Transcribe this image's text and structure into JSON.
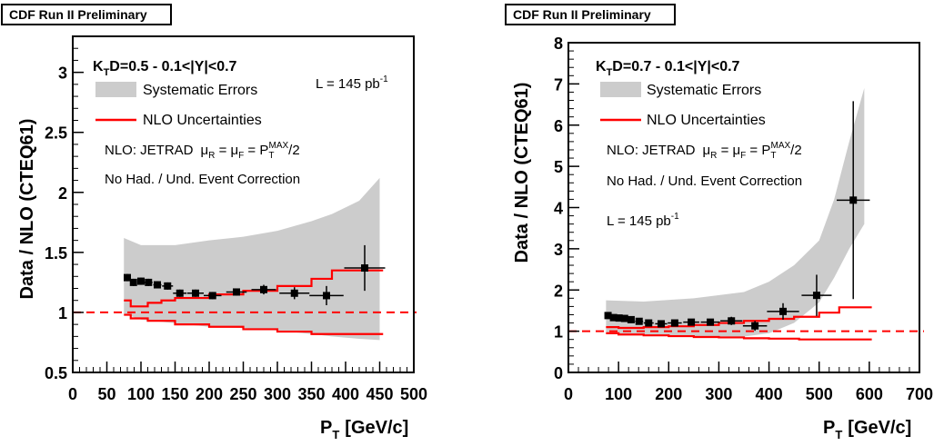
{
  "colors": {
    "band": "#cccccc",
    "nlo": "#ff0000",
    "data": "#000000",
    "frame": "#000000"
  },
  "panels": [
    {
      "banner": "CDF Run II Preliminary",
      "kt_label": "D=0.5 - 0.1<|Y|<0.7",
      "lumi": "L = 145 pb",
      "lumi_exp": "-1",
      "legend_syst": "Systematic Errors",
      "legend_nlo": "NLO Uncertainties",
      "nlo_text": "NLO: JETRAD",
      "mu_text": "/2",
      "corr_text": "No Had. / Und. Event Correction",
      "ylabel": "Data / NLO (CTEQ61)",
      "xlabel": "[GeV/c]",
      "chart_data": {
        "type": "scatter",
        "xlim": [
          0,
          500
        ],
        "ylim": [
          0.5,
          3.3
        ],
        "xticks": [
          0,
          50,
          100,
          150,
          200,
          250,
          300,
          350,
          400,
          450,
          500
        ],
        "yticks": [
          0.5,
          1,
          1.5,
          2,
          2.5,
          3
        ],
        "points": [
          {
            "x": 80,
            "xerr": 4,
            "y": 1.29,
            "yerr": 0.03
          },
          {
            "x": 89,
            "xerr": 5,
            "y": 1.25,
            "yerr": 0.03
          },
          {
            "x": 100,
            "xerr": 5,
            "y": 1.26,
            "yerr": 0.03
          },
          {
            "x": 111,
            "xerr": 6,
            "y": 1.25,
            "yerr": 0.03
          },
          {
            "x": 124,
            "xerr": 6,
            "y": 1.23,
            "yerr": 0.03
          },
          {
            "x": 139,
            "xerr": 8,
            "y": 1.22,
            "yerr": 0.03
          },
          {
            "x": 157,
            "xerr": 10,
            "y": 1.16,
            "yerr": 0.03
          },
          {
            "x": 180,
            "xerr": 12,
            "y": 1.16,
            "yerr": 0.03
          },
          {
            "x": 205,
            "xerr": 13,
            "y": 1.14,
            "yerr": 0.03
          },
          {
            "x": 240,
            "xerr": 15,
            "y": 1.17,
            "yerr": 0.03
          },
          {
            "x": 280,
            "xerr": 18,
            "y": 1.19,
            "yerr": 0.04
          },
          {
            "x": 325,
            "xerr": 22,
            "y": 1.16,
            "yerr": 0.05
          },
          {
            "x": 372,
            "xerr": 25,
            "y": 1.14,
            "yerr": 0.08
          },
          {
            "x": 428,
            "xerr": 30,
            "y": 1.37,
            "yerr": 0.19
          }
        ],
        "band_upper": [
          [
            75,
            1.62
          ],
          [
            100,
            1.56
          ],
          [
            150,
            1.56
          ],
          [
            200,
            1.6
          ],
          [
            250,
            1.63
          ],
          [
            300,
            1.68
          ],
          [
            350,
            1.76
          ],
          [
            380,
            1.82
          ],
          [
            420,
            1.93
          ],
          [
            450,
            2.12
          ]
        ],
        "band_lower": [
          [
            75,
            0.99
          ],
          [
            100,
            0.94
          ],
          [
            150,
            0.91
          ],
          [
            200,
            0.88
          ],
          [
            250,
            0.87
          ],
          [
            300,
            0.85
          ],
          [
            350,
            0.82
          ],
          [
            380,
            0.8
          ],
          [
            420,
            0.78
          ],
          [
            450,
            0.77
          ]
        ],
        "nlo_upper": [
          [
            75,
            1.1
          ],
          [
            85,
            1.05
          ],
          [
            110,
            1.08
          ],
          [
            130,
            1.1
          ],
          [
            150,
            1.12
          ],
          [
            200,
            1.15
          ],
          [
            250,
            1.18
          ],
          [
            300,
            1.22
          ],
          [
            350,
            1.28
          ],
          [
            380,
            1.35
          ],
          [
            455,
            1.35
          ]
        ],
        "nlo_lower": [
          [
            75,
            0.98
          ],
          [
            85,
            0.95
          ],
          [
            110,
            0.93
          ],
          [
            150,
            0.9
          ],
          [
            200,
            0.88
          ],
          [
            250,
            0.86
          ],
          [
            300,
            0.84
          ],
          [
            350,
            0.82
          ],
          [
            455,
            0.82
          ]
        ],
        "ref_line": 1
      }
    },
    {
      "banner": "CDF Run II Preliminary",
      "kt_label": "D=0.7 - 0.1<|Y|<0.7",
      "lumi": "L = 145 pb",
      "lumi_exp": "-1",
      "legend_syst": "Systematic Errors",
      "legend_nlo": "NLO Uncertainties",
      "nlo_text": "NLO: JETRAD",
      "mu_text": "/2",
      "corr_text": "No Had. / Und. Event Correction",
      "ylabel": "Data / NLO (CTEQ61)",
      "xlabel": "[GeV/c]",
      "chart_data": {
        "type": "scatter",
        "xlim": [
          0,
          700
        ],
        "ylim": [
          0,
          8
        ],
        "xticks": [
          0,
          100,
          200,
          300,
          400,
          500,
          600,
          700
        ],
        "yticks": [
          0,
          1,
          2,
          3,
          4,
          5,
          6,
          7,
          8
        ],
        "points": [
          {
            "x": 79,
            "xerr": 4,
            "y": 1.38,
            "yerr": 0.05
          },
          {
            "x": 90,
            "xerr": 5,
            "y": 1.33,
            "yerr": 0.05
          },
          {
            "x": 101,
            "xerr": 5,
            "y": 1.32,
            "yerr": 0.05
          },
          {
            "x": 112,
            "xerr": 6,
            "y": 1.31,
            "yerr": 0.05
          },
          {
            "x": 125,
            "xerr": 7,
            "y": 1.28,
            "yerr": 0.05
          },
          {
            "x": 141,
            "xerr": 8,
            "y": 1.24,
            "yerr": 0.05
          },
          {
            "x": 160,
            "xerr": 10,
            "y": 1.2,
            "yerr": 0.05
          },
          {
            "x": 185,
            "xerr": 12,
            "y": 1.18,
            "yerr": 0.05
          },
          {
            "x": 212,
            "xerr": 14,
            "y": 1.2,
            "yerr": 0.06
          },
          {
            "x": 245,
            "xerr": 16,
            "y": 1.22,
            "yerr": 0.07
          },
          {
            "x": 283,
            "xerr": 19,
            "y": 1.22,
            "yerr": 0.08
          },
          {
            "x": 325,
            "xerr": 22,
            "y": 1.25,
            "yerr": 0.1
          },
          {
            "x": 372,
            "xerr": 24,
            "y": 1.13,
            "yerr": 0.12
          },
          {
            "x": 428,
            "xerr": 32,
            "y": 1.48,
            "yerr": 0.2
          },
          {
            "x": 495,
            "xerr": 30,
            "y": 1.87,
            "yerr": 0.5
          },
          {
            "x": 568,
            "xerr": 33,
            "y": 4.18,
            "yerr": 2.4
          }
        ],
        "band_upper": [
          [
            75,
            1.75
          ],
          [
            150,
            1.72
          ],
          [
            250,
            1.8
          ],
          [
            350,
            1.95
          ],
          [
            400,
            2.2
          ],
          [
            450,
            2.6
          ],
          [
            500,
            3.2
          ],
          [
            530,
            4.2
          ],
          [
            560,
            5.6
          ],
          [
            590,
            6.9
          ]
        ],
        "band_lower": [
          [
            75,
            0.95
          ],
          [
            150,
            0.9
          ],
          [
            250,
            0.88
          ],
          [
            350,
            0.87
          ],
          [
            400,
            0.95
          ],
          [
            450,
            1.2
          ],
          [
            500,
            1.7
          ],
          [
            530,
            2.3
          ],
          [
            560,
            3.0
          ],
          [
            590,
            3.6
          ]
        ],
        "nlo_upper": [
          [
            75,
            1.1
          ],
          [
            100,
            1.08
          ],
          [
            150,
            1.1
          ],
          [
            200,
            1.12
          ],
          [
            250,
            1.15
          ],
          [
            300,
            1.2
          ],
          [
            350,
            1.25
          ],
          [
            400,
            1.3
          ],
          [
            450,
            1.35
          ],
          [
            500,
            1.45
          ],
          [
            540,
            1.58
          ],
          [
            605,
            1.58
          ]
        ],
        "nlo_lower": [
          [
            75,
            0.95
          ],
          [
            100,
            0.92
          ],
          [
            150,
            0.9
          ],
          [
            200,
            0.88
          ],
          [
            250,
            0.86
          ],
          [
            300,
            0.85
          ],
          [
            350,
            0.83
          ],
          [
            400,
            0.82
          ],
          [
            460,
            0.8
          ],
          [
            605,
            0.8
          ]
        ],
        "ref_line": 1
      }
    }
  ]
}
